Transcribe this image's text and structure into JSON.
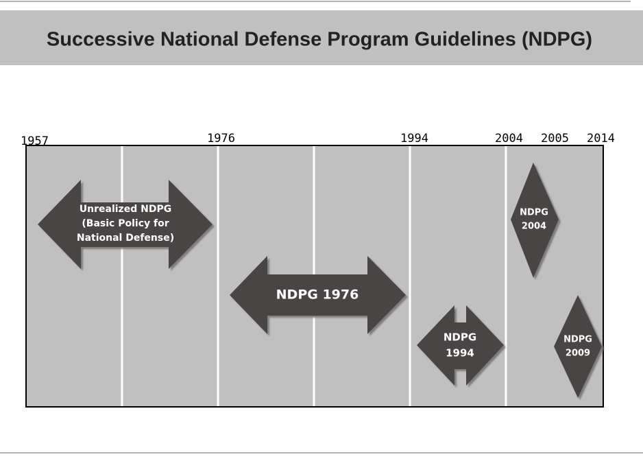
{
  "title": "Successive National Defense Program Guidelines (NDPG)",
  "years": [
    "1957",
    "1976",
    "1994",
    "2004",
    "2005",
    "2014"
  ],
  "shapes": [
    {
      "lines": [
        "Unrealized NDPG",
        "(Basic Policy for",
        "National Defense)"
      ]
    },
    {
      "lines": [
        "NDPG 1976"
      ]
    },
    {
      "lines": [
        "NDPG",
        "1994"
      ]
    },
    {
      "lines": [
        "NDPG",
        "2004"
      ]
    },
    {
      "lines": [
        "NDPG",
        "2009"
      ]
    }
  ]
}
